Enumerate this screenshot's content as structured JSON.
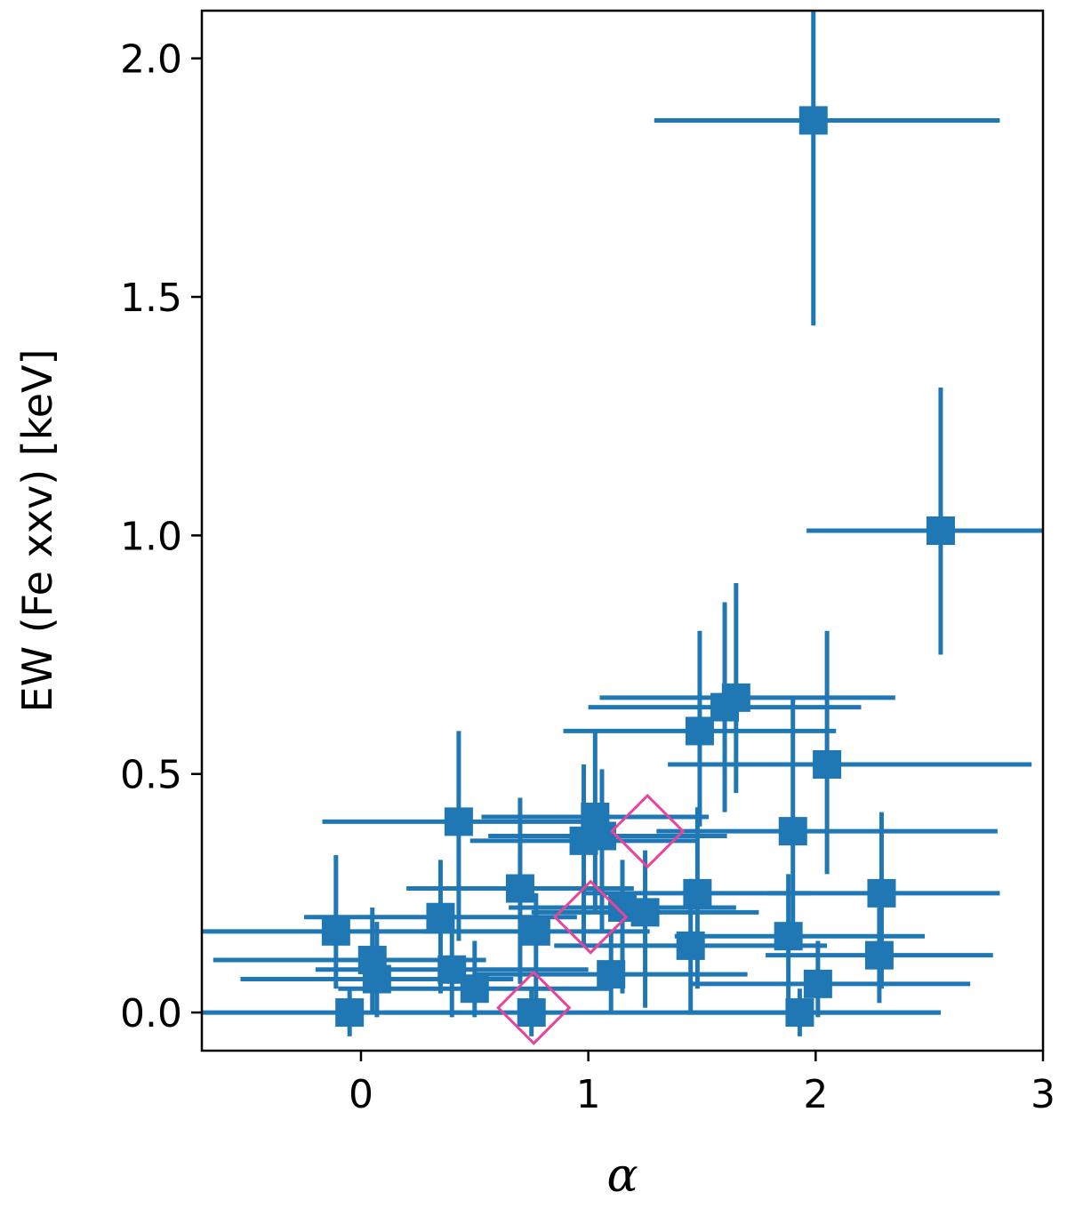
{
  "chart_data": {
    "type": "scatter",
    "title": "",
    "xlabel": "α",
    "ylabel": "EW (Fe xxv) [keV]",
    "xlim": [
      -0.7,
      3.0
    ],
    "ylim": [
      -0.08,
      2.1
    ],
    "xticks": [
      {
        "value": 0,
        "label": "0"
      },
      {
        "value": 1,
        "label": "1"
      },
      {
        "value": 2,
        "label": "2"
      },
      {
        "value": 3,
        "label": "3"
      }
    ],
    "yticks": [
      {
        "value": 0.0,
        "label": "0.0"
      },
      {
        "value": 0.5,
        "label": "0.5"
      },
      {
        "value": 1.0,
        "label": "1.0"
      },
      {
        "value": 1.5,
        "label": "1.5"
      },
      {
        "value": 2.0,
        "label": "2.0"
      }
    ],
    "grid": false,
    "colors": {
      "points": "#1f77b4",
      "highlight": "#e8449a"
    },
    "series": [
      {
        "marker": "square",
        "points": [
          {
            "x": 1.99,
            "y": 1.87,
            "xerr": [
              0.7,
              0.82
            ],
            "yerr": [
              0.43,
              0.3
            ]
          },
          {
            "x": 2.55,
            "y": 1.01,
            "xerr": [
              0.59,
              0.65
            ],
            "yerr": [
              0.26,
              0.3
            ]
          },
          {
            "x": 1.65,
            "y": 0.66,
            "xerr": [
              0.6,
              0.7
            ],
            "yerr": [
              0.2,
              0.24
            ]
          },
          {
            "x": 1.6,
            "y": 0.64,
            "xerr": [
              0.6,
              0.6
            ],
            "yerr": [
              0.22,
              0.22
            ]
          },
          {
            "x": 1.49,
            "y": 0.59,
            "xerr": [
              0.6,
              0.6
            ],
            "yerr": [
              0.2,
              0.21
            ]
          },
          {
            "x": 2.05,
            "y": 0.52,
            "xerr": [
              0.7,
              0.9
            ],
            "yerr": [
              0.23,
              0.28
            ]
          },
          {
            "x": 0.43,
            "y": 0.4,
            "xerr": [
              0.6,
              0.6
            ],
            "yerr": [
              0.25,
              0.19
            ]
          },
          {
            "x": 1.03,
            "y": 0.41,
            "xerr": [
              0.5,
              0.5
            ],
            "yerr": [
              0.2,
              0.18
            ]
          },
          {
            "x": 0.98,
            "y": 0.36,
            "xerr": [
              0.5,
              0.5
            ],
            "yerr": [
              0.22,
              0.16
            ]
          },
          {
            "x": 1.06,
            "y": 0.37,
            "xerr": [
              0.5,
              0.55
            ],
            "yerr": [
              0.2,
              0.14
            ]
          },
          {
            "x": 1.9,
            "y": 0.38,
            "xerr": [
              0.6,
              0.9
            ],
            "yerr": [
              0.23,
              0.28
            ]
          },
          {
            "x": 0.7,
            "y": 0.26,
            "xerr": [
              0.5,
              0.5
            ],
            "yerr": [
              0.2,
              0.19
            ]
          },
          {
            "x": 1.48,
            "y": 0.25,
            "xerr": [
              0.5,
              0.5
            ],
            "yerr": [
              0.2,
              0.18
            ]
          },
          {
            "x": 2.29,
            "y": 0.25,
            "xerr": [
              0.5,
              0.52
            ],
            "yerr": [
              0.2,
              0.17
            ]
          },
          {
            "x": 0.35,
            "y": 0.2,
            "xerr": [
              0.6,
              0.6
            ],
            "yerr": [
              0.16,
              0.12
            ]
          },
          {
            "x": 1.15,
            "y": 0.22,
            "xerr": [
              0.5,
              0.5
            ],
            "yerr": [
              0.18,
              0.1
            ]
          },
          {
            "x": 1.25,
            "y": 0.21,
            "xerr": [
              0.5,
              0.5
            ],
            "yerr": [
              0.2,
              0.13
            ]
          },
          {
            "x": -0.11,
            "y": 0.17,
            "xerr": [
              0.59,
              0.53
            ],
            "yerr": [
              0.12,
              0.16
            ]
          },
          {
            "x": 0.77,
            "y": 0.17,
            "xerr": [
              0.5,
              0.5
            ],
            "yerr": [
              0.17,
              0.08
            ]
          },
          {
            "x": 1.88,
            "y": 0.16,
            "xerr": [
              0.5,
              0.6
            ],
            "yerr": [
              0.14,
              0.13
            ]
          },
          {
            "x": 1.45,
            "y": 0.14,
            "xerr": [
              0.6,
              0.6
            ],
            "yerr": [
              0.14,
              0.14
            ]
          },
          {
            "x": 2.28,
            "y": 0.12,
            "xerr": [
              0.5,
              0.5
            ],
            "yerr": [
              0.1,
              0.1
            ]
          },
          {
            "x": 0.05,
            "y": 0.11,
            "xerr": [
              0.7,
              0.5
            ],
            "yerr": [
              0.11,
              0.11
            ]
          },
          {
            "x": 0.07,
            "y": 0.07,
            "xerr": [
              0.6,
              0.6
            ],
            "yerr": [
              0.08,
              0.12
            ]
          },
          {
            "x": 0.4,
            "y": 0.09,
            "xerr": [
              0.6,
              0.6
            ],
            "yerr": [
              0.1,
              0.09
            ]
          },
          {
            "x": 0.5,
            "y": 0.05,
            "xerr": [
              0.6,
              0.6
            ],
            "yerr": [
              0.06,
              0.1
            ]
          },
          {
            "x": 1.1,
            "y": 0.08,
            "xerr": [
              0.6,
              0.6
            ],
            "yerr": [
              0.08,
              0.09
            ]
          },
          {
            "x": 2.01,
            "y": 0.06,
            "xerr": [
              0.56,
              0.67
            ],
            "yerr": [
              0.07,
              0.09
            ]
          },
          {
            "x": -0.05,
            "y": 0.0,
            "xerr": [
              0.66,
              0.67
            ],
            "yerr": [
              0.05,
              0.05
            ]
          },
          {
            "x": 0.75,
            "y": 0.0,
            "xerr": [
              0.65,
              1.8
            ],
            "yerr": [
              0.05,
              0.05
            ]
          },
          {
            "x": 1.93,
            "y": 0.0,
            "xerr": [
              0.5,
              0.62
            ],
            "yerr": [
              0.05,
              0.05
            ]
          }
        ]
      },
      {
        "marker": "diamond",
        "points": [
          {
            "x": 1.01,
            "y": 0.2,
            "size": "large"
          },
          {
            "x": 1.26,
            "y": 0.38,
            "size": "medium"
          },
          {
            "x": 0.76,
            "y": 0.01,
            "size": "medium"
          }
        ]
      }
    ]
  }
}
